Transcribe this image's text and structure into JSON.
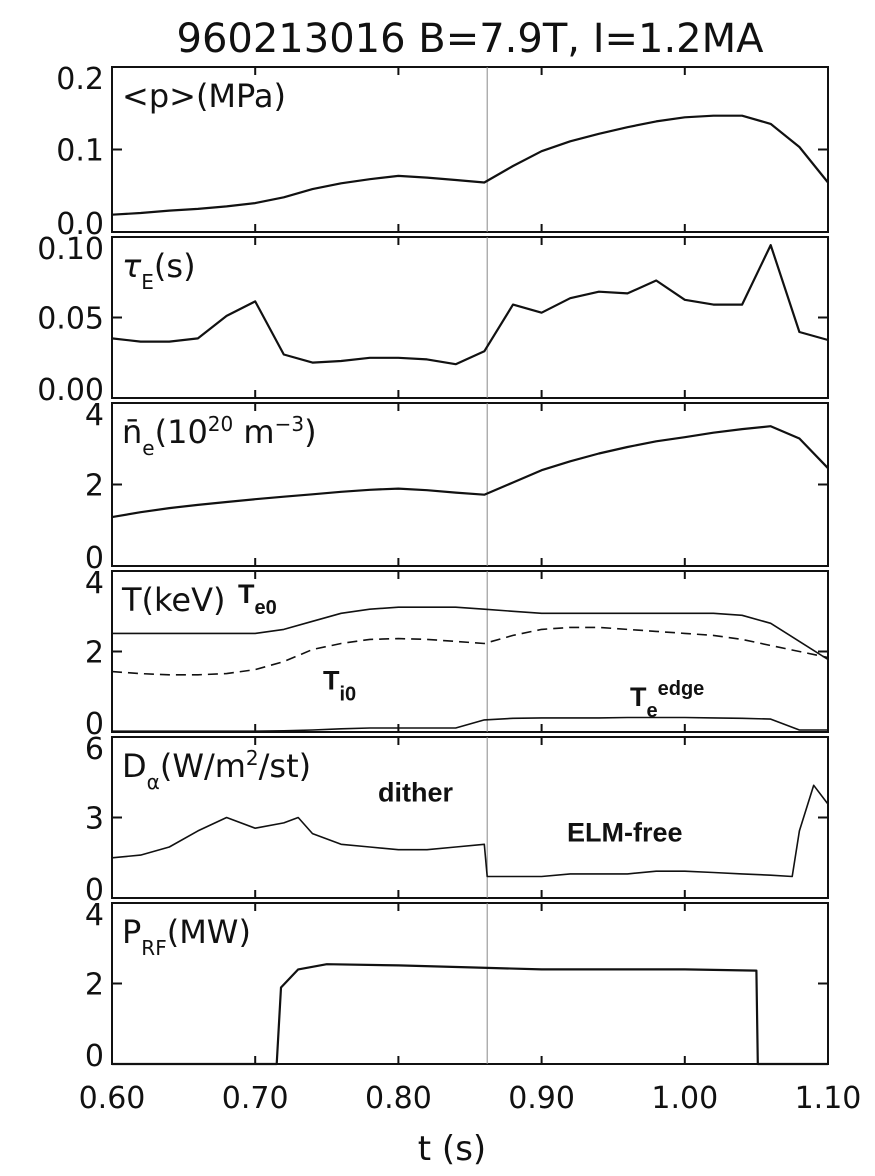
{
  "chart_data": {
    "type": "line",
    "title": "960213016   B=7.9T, I=1.2MA",
    "xlabel": "t (s)",
    "xlim": [
      0.6,
      1.1
    ],
    "x_ticks": [
      "0.60",
      "0.70",
      "0.80",
      "0.90",
      "1.00",
      "1.10"
    ],
    "vline_x": 0.862,
    "panels": [
      {
        "label": "<p>(MPa)",
        "ylim": [
          0.0,
          0.2
        ],
        "y_ticks": [
          "0.2",
          "0.1",
          "0.0"
        ],
        "series": [
          {
            "x": [
              0.6,
              0.62,
              0.64,
              0.66,
              0.68,
              0.7,
              0.72,
              0.74,
              0.76,
              0.78,
              0.8,
              0.82,
              0.84,
              0.86,
              0.88,
              0.9,
              0.92,
              0.94,
              0.96,
              0.98,
              1.0,
              1.02,
              1.04,
              1.06,
              1.08,
              1.1
            ],
            "y": [
              0.021,
              0.023,
              0.026,
              0.028,
              0.031,
              0.035,
              0.042,
              0.052,
              0.059,
              0.064,
              0.068,
              0.066,
              0.063,
              0.06,
              0.08,
              0.098,
              0.11,
              0.119,
              0.127,
              0.134,
              0.139,
              0.141,
              0.141,
              0.131,
              0.103,
              0.06
            ]
          }
        ]
      },
      {
        "label": "τE(s)",
        "ylim": [
          0.0,
          0.1
        ],
        "y_ticks": [
          "0.10",
          "0.05",
          "0.00"
        ],
        "series": [
          {
            "x": [
              0.6,
              0.62,
              0.64,
              0.66,
              0.68,
              0.7,
              0.72,
              0.74,
              0.76,
              0.78,
              0.8,
              0.82,
              0.84,
              0.86,
              0.88,
              0.9,
              0.92,
              0.94,
              0.96,
              0.98,
              1.0,
              1.02,
              1.04,
              1.06,
              1.08,
              1.1
            ],
            "y": [
              0.037,
              0.035,
              0.035,
              0.037,
              0.051,
              0.06,
              0.027,
              0.022,
              0.023,
              0.025,
              0.025,
              0.024,
              0.021,
              0.029,
              0.058,
              0.053,
              0.062,
              0.066,
              0.065,
              0.073,
              0.061,
              0.058,
              0.058,
              0.095,
              0.041,
              0.036
            ]
          }
        ]
      },
      {
        "label": "n̄e(10^20 m^-3)",
        "ylim": [
          0,
          4
        ],
        "y_ticks": [
          "4",
          "2",
          "0"
        ],
        "series": [
          {
            "x": [
              0.6,
              0.62,
              0.64,
              0.66,
              0.68,
              0.7,
              0.72,
              0.74,
              0.76,
              0.78,
              0.8,
              0.82,
              0.84,
              0.86,
              0.88,
              0.9,
              0.92,
              0.94,
              0.96,
              0.98,
              1.0,
              1.02,
              1.04,
              1.06,
              1.08,
              1.1
            ],
            "y": [
              1.2,
              1.32,
              1.42,
              1.5,
              1.57,
              1.64,
              1.7,
              1.76,
              1.82,
              1.87,
              1.9,
              1.86,
              1.8,
              1.75,
              2.05,
              2.35,
              2.57,
              2.76,
              2.92,
              3.06,
              3.16,
              3.27,
              3.36,
              3.43,
              3.13,
              2.4
            ]
          }
        ]
      },
      {
        "label": "T(keV)",
        "ylim": [
          0,
          4
        ],
        "y_ticks": [
          "4",
          "2",
          "0"
        ],
        "annotations": [
          "Te0",
          "Ti0",
          "Te^edge"
        ],
        "series": [
          {
            "name": "Te0",
            "x": [
              0.6,
              0.62,
              0.64,
              0.66,
              0.68,
              0.7,
              0.72,
              0.74,
              0.76,
              0.78,
              0.8,
              0.82,
              0.84,
              0.86,
              0.88,
              0.9,
              0.92,
              0.94,
              0.96,
              0.98,
              1.0,
              1.02,
              1.04,
              1.06,
              1.08,
              1.1
            ],
            "y": [
              2.45,
              2.45,
              2.45,
              2.45,
              2.45,
              2.45,
              2.55,
              2.75,
              2.95,
              3.05,
              3.1,
              3.1,
              3.1,
              3.05,
              3.0,
              2.95,
              2.95,
              2.95,
              2.95,
              2.95,
              2.95,
              2.95,
              2.9,
              2.7,
              2.25,
              1.8
            ]
          },
          {
            "name": "Ti0",
            "x": [
              0.6,
              0.62,
              0.64,
              0.66,
              0.68,
              0.7,
              0.72,
              0.74,
              0.76,
              0.78,
              0.8,
              0.82,
              0.84,
              0.86,
              0.88,
              0.9,
              0.92,
              0.94,
              0.96,
              0.98,
              1.0,
              1.02,
              1.04,
              1.06,
              1.08,
              1.1
            ],
            "y": [
              1.5,
              1.45,
              1.42,
              1.42,
              1.45,
              1.55,
              1.75,
              2.05,
              2.2,
              2.3,
              2.32,
              2.3,
              2.25,
              2.2,
              2.4,
              2.55,
              2.6,
              2.6,
              2.55,
              2.5,
              2.45,
              2.4,
              2.3,
              2.15,
              2.0,
              1.85
            ]
          },
          {
            "name": "Te^edge",
            "x": [
              0.6,
              0.62,
              0.64,
              0.66,
              0.68,
              0.7,
              0.72,
              0.74,
              0.76,
              0.78,
              0.8,
              0.82,
              0.84,
              0.86,
              0.88,
              0.9,
              0.92,
              0.94,
              0.96,
              0.98,
              1.0,
              1.02,
              1.04,
              1.06,
              1.08,
              1.1
            ],
            "y": [
              0.02,
              0.02,
              0.02,
              0.02,
              0.02,
              0.02,
              0.03,
              0.05,
              0.08,
              0.1,
              0.1,
              0.1,
              0.1,
              0.3,
              0.34,
              0.35,
              0.35,
              0.35,
              0.36,
              0.36,
              0.36,
              0.35,
              0.34,
              0.32,
              0.05,
              0.05
            ]
          }
        ]
      },
      {
        "label": "Dα(W/m^2/st)",
        "ylim": [
          0,
          6
        ],
        "y_ticks": [
          "6",
          "3",
          "0"
        ],
        "annotations": [
          "dither",
          "ELM-free"
        ],
        "series": [
          {
            "x": [
              0.6,
              0.62,
              0.64,
              0.66,
              0.68,
              0.7,
              0.72,
              0.73,
              0.74,
              0.76,
              0.78,
              0.8,
              0.82,
              0.84,
              0.86,
              0.862,
              0.88,
              0.9,
              0.92,
              0.94,
              0.96,
              0.98,
              1.0,
              1.02,
              1.04,
              1.06,
              1.075,
              1.08,
              1.09,
              1.1
            ],
            "y": [
              1.5,
              1.6,
              1.9,
              2.5,
              3.0,
              2.6,
              2.8,
              3.0,
              2.4,
              2.0,
              1.9,
              1.8,
              1.8,
              1.9,
              2.0,
              0.8,
              0.8,
              0.8,
              0.9,
              0.9,
              0.9,
              1.0,
              1.0,
              0.95,
              0.9,
              0.85,
              0.8,
              2.5,
              4.2,
              3.5
            ]
          }
        ]
      },
      {
        "label": "PRF(MW)",
        "ylim": [
          0,
          4
        ],
        "y_ticks": [
          "4",
          "2",
          "0"
        ],
        "series": [
          {
            "x": [
              0.6,
              0.715,
              0.718,
              0.73,
              0.75,
              0.8,
              0.85,
              0.9,
              0.95,
              1.0,
              1.05,
              1.051,
              1.1
            ],
            "y": [
              0,
              0,
              1.9,
              2.35,
              2.48,
              2.45,
              2.4,
              2.35,
              2.35,
              2.35,
              2.32,
              0,
              0
            ]
          }
        ]
      }
    ]
  }
}
